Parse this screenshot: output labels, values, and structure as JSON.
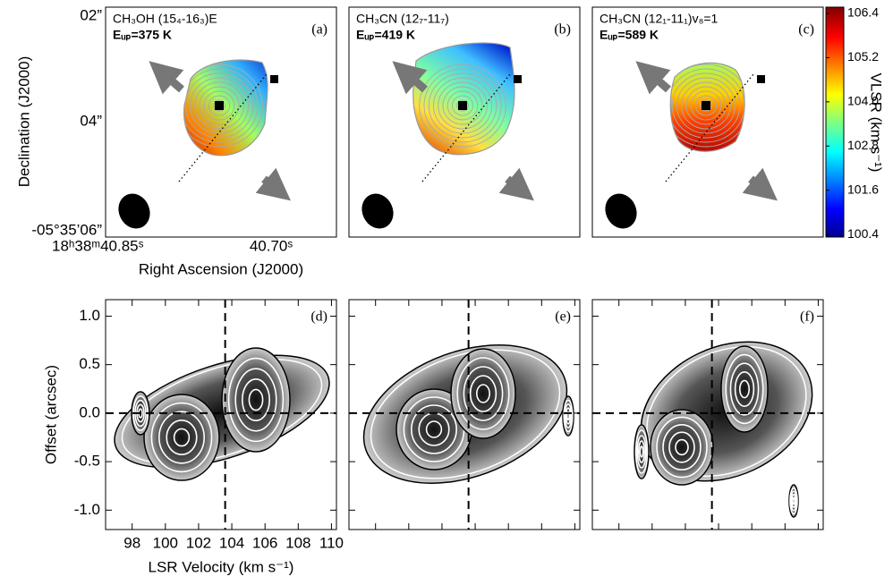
{
  "chart_data": [
    {
      "type": "map",
      "panel": "(a)",
      "title": "CH₃OH (15₄-16₃)E",
      "subtitle": "Eᵤₚ=375 K",
      "ylabel": "Declination (J2000)",
      "xlabel": "Right Ascension (J2000)",
      "ytick_labels": [
        "02”",
        "04”",
        "-05°35’06”"
      ],
      "xtick_labels": [
        "18ʰ38ᵐ40.85ˢ",
        "40.70ˢ"
      ]
    },
    {
      "type": "map",
      "panel": "(b)",
      "title": "CH₃CN (12₇-11₇)",
      "subtitle": "Eᵤₚ=419 K"
    },
    {
      "type": "map",
      "panel": "(c)",
      "title": "CH₃CN (12₁-11₁)v₈=1",
      "subtitle": "Eᵤₚ=589 K",
      "colorbar": {
        "label": "VLSR (km s⁻¹)",
        "colormap": "jet",
        "lim": [
          100.33,
          106.57
        ],
        "ticks": [
          {
            "value": 100.4,
            "label": "100.4"
          },
          {
            "value": 101.6,
            "label": "101.6"
          },
          {
            "value": 102.8,
            "label": "102.8"
          },
          {
            "value": 104,
            "label": "104.0"
          },
          {
            "value": 105.2,
            "label": "105.2"
          },
          {
            "value": 106.4,
            "label": "106.4"
          }
        ]
      }
    },
    {
      "type": "pv",
      "panel": "(d)",
      "xlabel": "LSR Velocity (km s⁻¹)",
      "ylabel": "Offset (arcsec)",
      "xlim": [
        96.4,
        110.3
      ],
      "ylim": [
        -1.2,
        1.17
      ],
      "xticks": [
        98,
        100,
        102,
        104,
        106,
        108,
        110
      ],
      "yticks": [
        {
          "value": -1,
          "label": "-1.0"
        },
        {
          "value": -0.5,
          "label": "-0.5"
        },
        {
          "value": 0,
          "label": "0.0"
        },
        {
          "value": 0.5,
          "label": "0.5"
        },
        {
          "value": 1,
          "label": "1.0"
        }
      ],
      "vline": 103.6,
      "hline": 0
    },
    {
      "type": "pv",
      "panel": "(e)",
      "xlim": [
        96.4,
        110.3
      ],
      "ylim": [
        -1.2,
        1.17
      ],
      "xticks": [
        98,
        100,
        102,
        104,
        106,
        108,
        110
      ],
      "yticks": [
        -1,
        -0.5,
        0,
        0.5,
        1
      ],
      "vline": 103.6,
      "hline": 0
    },
    {
      "type": "pv",
      "panel": "(f)",
      "xlim": [
        96.4,
        110.3
      ],
      "ylim": [
        -1.2,
        1.17
      ],
      "xticks": [
        98,
        100,
        102,
        104,
        106,
        108,
        110
      ],
      "yticks": [
        -1,
        -0.5,
        0,
        0.5,
        1
      ],
      "vline": 103.6,
      "hline": 0
    }
  ]
}
